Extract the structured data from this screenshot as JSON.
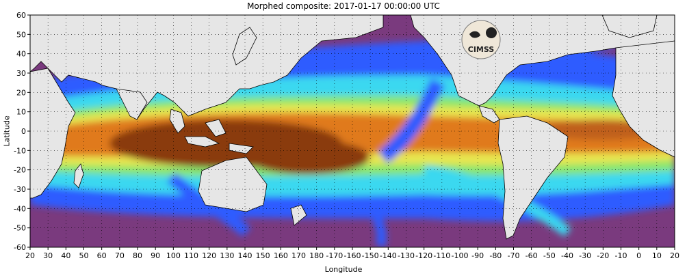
{
  "title": "Morphed composite: 2017-01-17 00:00:00 UTC",
  "axes": {
    "x_label": "Longitude",
    "y_label": "Latitude",
    "x_ticks": [
      "20",
      "30",
      "40",
      "50",
      "60",
      "70",
      "80",
      "90",
      "100",
      "110",
      "120",
      "130",
      "140",
      "150",
      "160",
      "170",
      "180",
      "-170",
      "-160",
      "-150",
      "-140",
      "-130",
      "-120",
      "-110",
      "-100",
      "-90",
      "-80",
      "-70",
      "-60",
      "-50",
      "-40",
      "-30",
      "-20",
      "-10",
      "0",
      "10",
      "20"
    ],
    "y_ticks": [
      "60",
      "50",
      "40",
      "30",
      "20",
      "10",
      "0",
      "-10",
      "-20",
      "-30",
      "-40",
      "-50",
      "-60"
    ],
    "lon_range_east": [
      20,
      380
    ],
    "lat_range": [
      -60,
      60
    ],
    "grid": "dotted every 10 degrees"
  },
  "logo": {
    "text": "CIMSS",
    "semantic": "cimss-logo"
  },
  "colors": {
    "land": "#e6e6e6",
    "dry": "#7a3a7e",
    "moist_blue": "#2d5cff",
    "cyan": "#3ad8f0",
    "green": "#88e66e",
    "yellow": "#e8e650",
    "orange": "#e07a1e",
    "wet": "#8a3a0a"
  }
}
